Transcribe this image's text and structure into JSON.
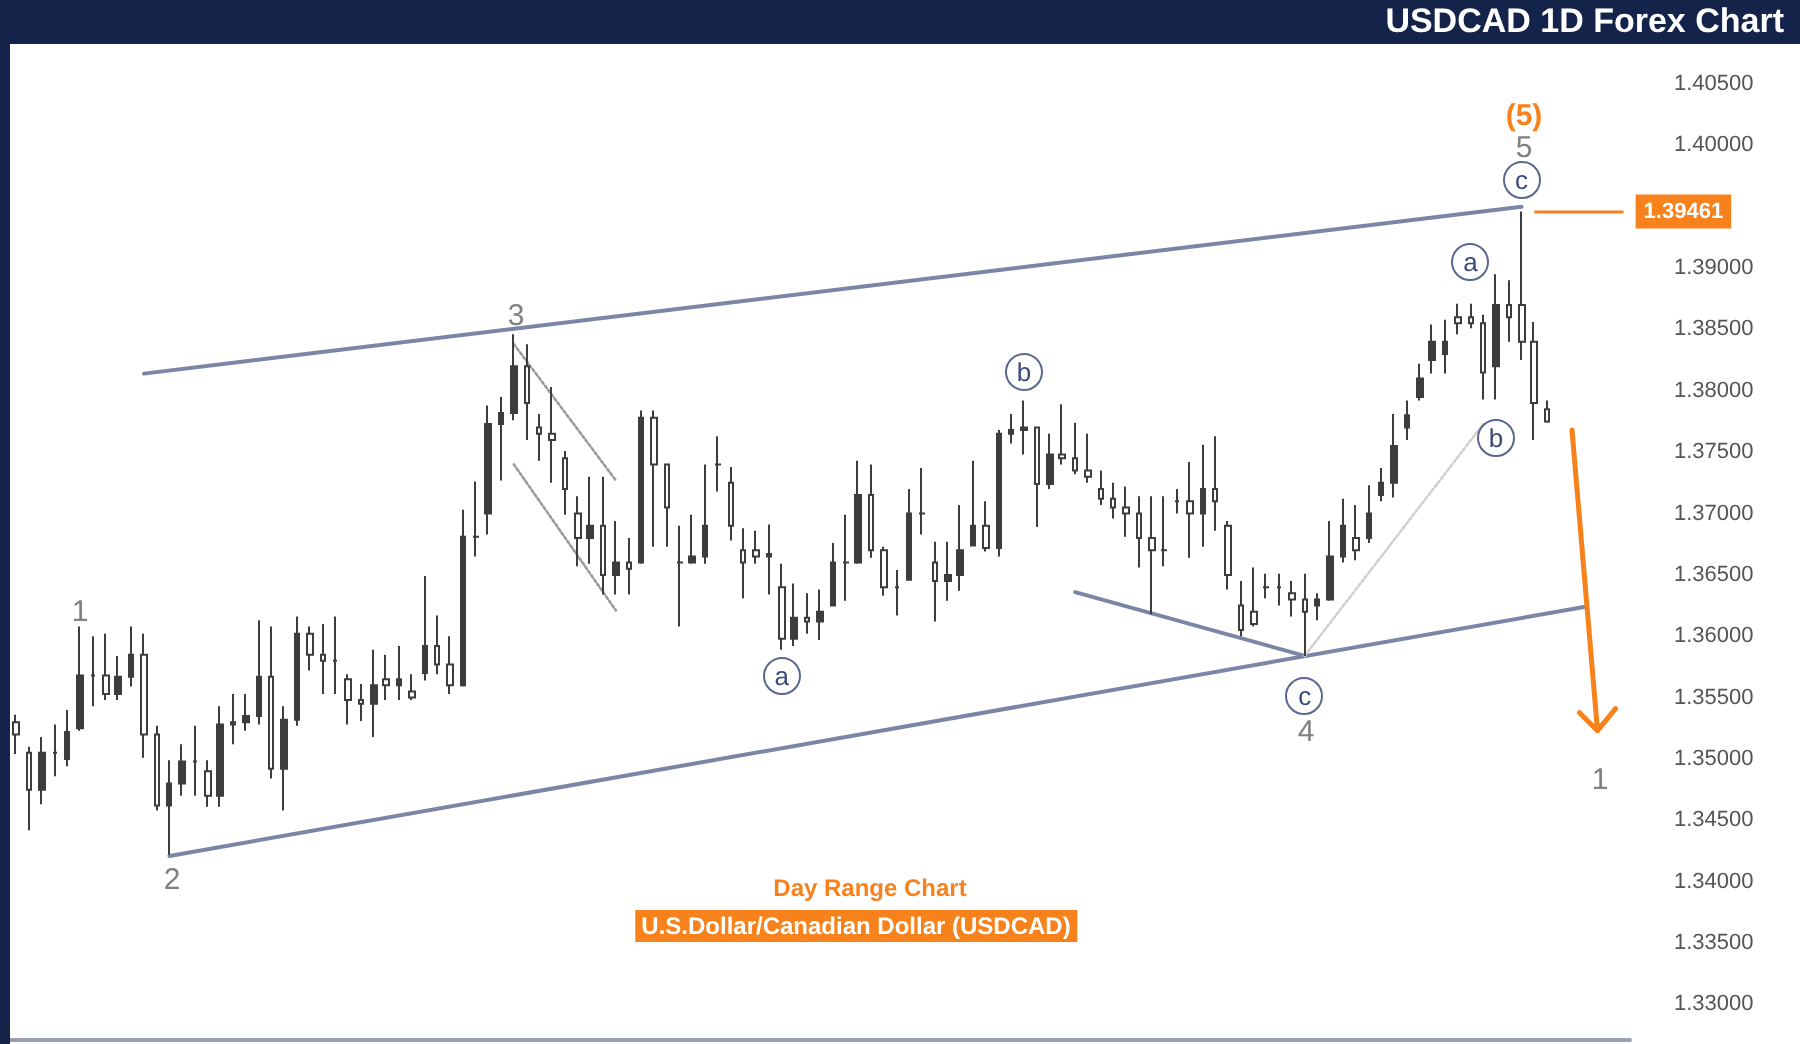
{
  "chart_data": {
    "type": "candlestick",
    "title": "USDCAD 1D Forex Chart",
    "subtitle": "Day Range Chart",
    "color": "#3d3d3d",
    "categories": [
      null,
      null,
      null,
      null,
      null,
      null,
      null,
      null,
      null,
      null,
      null,
      null,
      null,
      null,
      null,
      null,
      null,
      null,
      null,
      null,
      null,
      null,
      null,
      null,
      null,
      null,
      null,
      null,
      null,
      null,
      null,
      null,
      null,
      null,
      null,
      null,
      null,
      null,
      null,
      null,
      null,
      null,
      null,
      null,
      null,
      null,
      null,
      null,
      null,
      null,
      null,
      null,
      null,
      null,
      null,
      null,
      null,
      null,
      null,
      null,
      null,
      null,
      null,
      null,
      null,
      null,
      null,
      null,
      null,
      null,
      null,
      null,
      null,
      null,
      null,
      null,
      null,
      null,
      null,
      null,
      null,
      null,
      null,
      null,
      null,
      null,
      null,
      null,
      null,
      null,
      null,
      null,
      null,
      null,
      null,
      null,
      null,
      null,
      null,
      null,
      null,
      null,
      null,
      null,
      null,
      null,
      null,
      null,
      null,
      null,
      null,
      null,
      null,
      null,
      null,
      null,
      null,
      null,
      null,
      null,
      null,
      null,
      null,
      null,
      null,
      null,
      null
    ],
    "ohlc": [
      [
        1.353,
        1.3536,
        1.3504,
        1.352
      ],
      [
        1.3505,
        1.351,
        1.3442,
        1.3475
      ],
      [
        1.3475,
        1.3518,
        1.3463,
        1.3505
      ],
      [
        1.3505,
        1.3528,
        1.3486,
        1.3505
      ],
      [
        1.35,
        1.354,
        1.3494,
        1.3522
      ],
      [
        1.3525,
        1.3608,
        1.3523,
        1.3568
      ],
      [
        1.3568,
        1.36,
        1.3543,
        1.3568
      ],
      [
        1.3568,
        1.3602,
        1.3548,
        1.3553
      ],
      [
        1.3553,
        1.3584,
        1.3548,
        1.3567
      ],
      [
        1.3567,
        1.3608,
        1.3559,
        1.3585
      ],
      [
        1.3585,
        1.3602,
        1.3501,
        1.352
      ],
      [
        1.352,
        1.3527,
        1.3458,
        1.3462
      ],
      [
        1.3462,
        1.3499,
        1.3422,
        1.348
      ],
      [
        1.348,
        1.3512,
        1.347,
        1.3498
      ],
      [
        1.3498,
        1.3527,
        1.347,
        1.3498
      ],
      [
        1.349,
        1.3499,
        1.3461,
        1.347
      ],
      [
        1.347,
        1.3543,
        1.3461,
        1.3528
      ],
      [
        1.3528,
        1.3553,
        1.3512,
        1.353
      ],
      [
        1.353,
        1.3553,
        1.3523,
        1.3535
      ],
      [
        1.3535,
        1.3613,
        1.3528,
        1.3567
      ],
      [
        1.3567,
        1.3608,
        1.3484,
        1.3492
      ],
      [
        1.3492,
        1.3543,
        1.3458,
        1.3532
      ],
      [
        1.3532,
        1.3616,
        1.3527,
        1.3602
      ],
      [
        1.3602,
        1.3608,
        1.3572,
        1.3585
      ],
      [
        1.3585,
        1.361,
        1.3553,
        1.358
      ],
      [
        1.358,
        1.3616,
        1.3553,
        1.358
      ],
      [
        1.3565,
        1.3569,
        1.3528,
        1.3548
      ],
      [
        1.3548,
        1.3561,
        1.3531,
        1.3545
      ],
      [
        1.3545,
        1.3589,
        1.3518,
        1.356
      ],
      [
        1.3565,
        1.3585,
        1.3548,
        1.356
      ],
      [
        1.356,
        1.3592,
        1.3548,
        1.3565
      ],
      [
        1.3555,
        1.3569,
        1.3548,
        1.355
      ],
      [
        1.357,
        1.3649,
        1.3564,
        1.3592
      ],
      [
        1.3592,
        1.3617,
        1.3569,
        1.3577
      ],
      [
        1.3577,
        1.36,
        1.3553,
        1.356
      ],
      [
        1.356,
        1.3703,
        1.3559,
        1.3681
      ],
      [
        1.3681,
        1.3726,
        1.3665,
        1.3681
      ],
      [
        1.37,
        1.3788,
        1.3683,
        1.3773
      ],
      [
        1.3773,
        1.3795,
        1.3727,
        1.3782
      ],
      [
        1.3782,
        1.3846,
        1.3776,
        1.382
      ],
      [
        1.382,
        1.3838,
        1.376,
        1.379
      ],
      [
        1.377,
        1.3781,
        1.3743,
        1.3765
      ],
      [
        1.3765,
        1.3803,
        1.3725,
        1.376
      ],
      [
        1.3745,
        1.3751,
        1.3699,
        1.372
      ],
      [
        1.37,
        1.3714,
        1.3657,
        1.368
      ],
      [
        1.368,
        1.373,
        1.3659,
        1.369
      ],
      [
        1.369,
        1.373,
        1.3634,
        1.365
      ],
      [
        1.365,
        1.3694,
        1.3634,
        1.366
      ],
      [
        1.366,
        1.368,
        1.3634,
        1.3655
      ],
      [
        1.366,
        1.3784,
        1.3659,
        1.3778
      ],
      [
        1.3778,
        1.3784,
        1.3673,
        1.374
      ],
      [
        1.374,
        1.374,
        1.3673,
        1.3705
      ],
      [
        1.366,
        1.369,
        1.3608,
        1.366
      ],
      [
        1.366,
        1.3699,
        1.3659,
        1.3665
      ],
      [
        1.3665,
        1.374,
        1.3659,
        1.369
      ],
      [
        1.374,
        1.3763,
        1.3718,
        1.374
      ],
      [
        1.3725,
        1.3738,
        1.3678,
        1.369
      ],
      [
        1.367,
        1.3688,
        1.3631,
        1.366
      ],
      [
        1.367,
        1.3686,
        1.3659,
        1.3665
      ],
      [
        1.3665,
        1.3691,
        1.3634,
        1.3667
      ],
      [
        1.364,
        1.3659,
        1.3589,
        1.3598
      ],
      [
        1.3598,
        1.3643,
        1.3592,
        1.3615
      ],
      [
        1.3615,
        1.3635,
        1.3602,
        1.3612
      ],
      [
        1.3612,
        1.3638,
        1.3597,
        1.362
      ],
      [
        1.3625,
        1.3676,
        1.3625,
        1.366
      ],
      [
        1.366,
        1.3699,
        1.3629,
        1.366
      ],
      [
        1.366,
        1.3743,
        1.3659,
        1.3715
      ],
      [
        1.3715,
        1.374,
        1.3664,
        1.367
      ],
      [
        1.367,
        1.3673,
        1.3633,
        1.364
      ],
      [
        1.364,
        1.3654,
        1.3617,
        1.364
      ],
      [
        1.3646,
        1.372,
        1.3646,
        1.37
      ],
      [
        1.37,
        1.3737,
        1.3683,
        1.37
      ],
      [
        1.366,
        1.3677,
        1.3612,
        1.3645
      ],
      [
        1.3645,
        1.3677,
        1.3629,
        1.365
      ],
      [
        1.365,
        1.3707,
        1.3637,
        1.367
      ],
      [
        1.3674,
        1.3743,
        1.3674,
        1.369
      ],
      [
        1.369,
        1.371,
        1.3669,
        1.3672
      ],
      [
        1.3672,
        1.3768,
        1.3665,
        1.3765
      ],
      [
        1.3765,
        1.3781,
        1.3757,
        1.3768
      ],
      [
        1.3768,
        1.3792,
        1.3748,
        1.377
      ],
      [
        1.377,
        1.3771,
        1.3689,
        1.3724
      ],
      [
        1.3724,
        1.3765,
        1.372,
        1.3748
      ],
      [
        1.3748,
        1.3789,
        1.374,
        1.3745
      ],
      [
        1.3745,
        1.3774,
        1.3732,
        1.3735
      ],
      [
        1.3735,
        1.3765,
        1.3725,
        1.373
      ],
      [
        1.372,
        1.3735,
        1.3707,
        1.3712
      ],
      [
        1.3712,
        1.3725,
        1.3696,
        1.3705
      ],
      [
        1.3705,
        1.3722,
        1.3681,
        1.37
      ],
      [
        1.37,
        1.3714,
        1.3656,
        1.368
      ],
      [
        1.368,
        1.3714,
        1.3618,
        1.367
      ],
      [
        1.367,
        1.3714,
        1.3657,
        1.367
      ],
      [
        1.371,
        1.372,
        1.37,
        1.371
      ],
      [
        1.371,
        1.3742,
        1.3664,
        1.37
      ],
      [
        1.37,
        1.3756,
        1.3673,
        1.372
      ],
      [
        1.372,
        1.3763,
        1.3686,
        1.371
      ],
      [
        1.369,
        1.3694,
        1.3638,
        1.365
      ],
      [
        1.3625,
        1.3645,
        1.36,
        1.3605
      ],
      [
        1.362,
        1.3656,
        1.3608,
        1.361
      ],
      [
        1.364,
        1.3651,
        1.3631,
        1.364
      ],
      [
        1.364,
        1.3651,
        1.3625,
        1.364
      ],
      [
        1.3635,
        1.3645,
        1.3616,
        1.363
      ],
      [
        1.363,
        1.3651,
        1.3584,
        1.362
      ],
      [
        1.3625,
        1.3635,
        1.3613,
        1.363
      ],
      [
        1.363,
        1.3694,
        1.3629,
        1.3665
      ],
      [
        1.3665,
        1.3712,
        1.366,
        1.369
      ],
      [
        1.368,
        1.3707,
        1.3662,
        1.367
      ],
      [
        1.368,
        1.3723,
        1.3676,
        1.37
      ],
      [
        1.3715,
        1.3737,
        1.371,
        1.3725
      ],
      [
        1.3725,
        1.3781,
        1.3713,
        1.3755
      ],
      [
        1.377,
        1.3792,
        1.376,
        1.378
      ],
      [
        1.3795,
        1.3822,
        1.3792,
        1.381
      ],
      [
        1.3825,
        1.3854,
        1.3814,
        1.384
      ],
      [
        1.383,
        1.3858,
        1.3814,
        1.384
      ],
      [
        1.386,
        1.3871,
        1.3846,
        1.3855
      ],
      [
        1.386,
        1.3871,
        1.3851,
        1.3855
      ],
      [
        1.3855,
        1.3862,
        1.3793,
        1.3815
      ],
      [
        1.382,
        1.3895,
        1.3793,
        1.387
      ],
      [
        1.387,
        1.389,
        1.384,
        1.386
      ],
      [
        1.387,
        1.39461,
        1.3825,
        1.384
      ],
      [
        1.384,
        1.3856,
        1.376,
        1.379
      ],
      [
        1.3785,
        1.3792,
        1.3774,
        1.3775
      ],
      null,
      null,
      null,
      null,
      null,
      null
    ],
    "series": [
      {
        "type": "line",
        "color": "#7b86a6",
        "line_style": "solid",
        "values": [
          null,
          null,
          null,
          null,
          null,
          null,
          null,
          null,
          null,
          null,
          1.3814,
          null,
          null,
          null,
          null,
          null,
          null,
          null,
          null,
          null,
          null,
          null,
          null,
          null,
          null,
          null,
          null,
          null,
          null,
          null,
          null,
          null,
          null,
          null,
          null,
          null,
          null,
          null,
          null,
          null,
          null,
          null,
          null,
          null,
          null,
          null,
          null,
          null,
          null,
          null,
          null,
          null,
          null,
          null,
          null,
          null,
          null,
          null,
          null,
          null,
          null,
          null,
          null,
          null,
          null,
          null,
          null,
          null,
          null,
          null,
          null,
          null,
          null,
          null,
          null,
          null,
          null,
          null,
          null,
          null,
          null,
          null,
          null,
          null,
          null,
          null,
          null,
          null,
          null,
          null,
          null,
          null,
          null,
          null,
          null,
          null,
          null,
          null,
          null,
          null,
          null,
          null,
          null,
          null,
          null,
          null,
          null,
          null,
          null,
          null,
          null,
          null,
          null,
          null,
          null,
          null,
          null,
          null,
          1.395,
          null,
          null,
          null,
          null,
          null,
          null,
          null,
          null
        ]
      },
      {
        "type": "line",
        "color": "#7b86a6",
        "line_style": "solid",
        "values": [
          null,
          null,
          null,
          null,
          null,
          null,
          null,
          null,
          null,
          null,
          null,
          null,
          1.3421,
          null,
          null,
          null,
          null,
          null,
          null,
          null,
          null,
          null,
          null,
          null,
          null,
          null,
          null,
          null,
          null,
          null,
          null,
          null,
          null,
          null,
          null,
          null,
          null,
          null,
          null,
          null,
          null,
          null,
          null,
          null,
          null,
          null,
          null,
          null,
          null,
          null,
          null,
          null,
          null,
          null,
          null,
          null,
          null,
          null,
          null,
          null,
          null,
          null,
          null,
          null,
          null,
          null,
          null,
          null,
          null,
          null,
          null,
          null,
          null,
          null,
          null,
          null,
          null,
          null,
          null,
          null,
          null,
          null,
          null,
          null,
          null,
          null,
          null,
          null,
          null,
          null,
          null,
          null,
          null,
          null,
          null,
          null,
          null,
          null,
          null,
          null,
          null,
          null,
          null,
          null,
          null,
          null,
          null,
          null,
          null,
          null,
          null,
          null,
          null,
          null,
          null,
          null,
          null,
          null,
          null,
          null,
          null,
          null,
          null,
          1.3624,
          null,
          null,
          null
        ]
      },
      {
        "type": "line",
        "color": "#7b86a6",
        "line_style": "solid",
        "values": [
          null,
          null,
          null,
          null,
          null,
          null,
          null,
          null,
          null,
          null,
          null,
          null,
          null,
          null,
          null,
          null,
          null,
          null,
          null,
          null,
          null,
          null,
          null,
          null,
          null,
          null,
          null,
          null,
          null,
          null,
          null,
          null,
          null,
          null,
          null,
          null,
          null,
          null,
          null,
          null,
          null,
          null,
          null,
          null,
          null,
          null,
          null,
          null,
          null,
          null,
          null,
          null,
          null,
          null,
          null,
          null,
          null,
          null,
          null,
          null,
          null,
          null,
          null,
          null,
          null,
          null,
          null,
          null,
          null,
          null,
          null,
          null,
          null,
          null,
          null,
          null,
          null,
          null,
          null,
          null,
          null,
          null,
          null,
          1.3636,
          null,
          null,
          null,
          null,
          null,
          null,
          null,
          null,
          null,
          null,
          null,
          null,
          null,
          null,
          null,
          null,
          null,
          1.3584,
          null,
          null,
          null,
          null,
          null,
          null,
          null,
          null,
          null,
          null,
          null,
          null,
          null,
          null,
          null,
          null,
          null,
          null,
          null,
          null,
          null,
          null,
          null,
          null,
          null
        ]
      },
      {
        "type": "line",
        "color": "#9a9a9a",
        "line_style": "dotted",
        "values": [
          null,
          null,
          null,
          null,
          null,
          null,
          null,
          null,
          null,
          null,
          null,
          null,
          null,
          null,
          null,
          null,
          null,
          null,
          null,
          null,
          null,
          null,
          null,
          null,
          null,
          null,
          null,
          null,
          null,
          null,
          null,
          null,
          null,
          null,
          null,
          null,
          null,
          null,
          null,
          1.3838,
          null,
          null,
          null,
          null,
          null,
          null,
          null,
          1.3727,
          null,
          null,
          null,
          null,
          null,
          null,
          null,
          null,
          null,
          null,
          null,
          null,
          null,
          null,
          null,
          null,
          null,
          null,
          null,
          null,
          null,
          null,
          null,
          null,
          null,
          null,
          null,
          null,
          null,
          null,
          null,
          null,
          null,
          null,
          null,
          null,
          null,
          null,
          null,
          null,
          null,
          null,
          null,
          null,
          null,
          null,
          null,
          null,
          null,
          null,
          null,
          null,
          null,
          null,
          null,
          null,
          null,
          null,
          null,
          null,
          null,
          null,
          null,
          null,
          null,
          null,
          null,
          null,
          null,
          null,
          null,
          null,
          null,
          null,
          null,
          null,
          null,
          null,
          null
        ]
      },
      {
        "type": "line",
        "color": "#9a9a9a",
        "line_style": "dotted",
        "values": [
          null,
          null,
          null,
          null,
          null,
          null,
          null,
          null,
          null,
          null,
          null,
          null,
          null,
          null,
          null,
          null,
          null,
          null,
          null,
          null,
          null,
          null,
          null,
          null,
          null,
          null,
          null,
          null,
          null,
          null,
          null,
          null,
          null,
          null,
          null,
          null,
          null,
          null,
          null,
          1.374,
          null,
          null,
          null,
          null,
          null,
          null,
          null,
          1.3621,
          null,
          null,
          null,
          null,
          null,
          null,
          null,
          null,
          null,
          null,
          null,
          null,
          null,
          null,
          null,
          null,
          null,
          null,
          null,
          null,
          null,
          null,
          null,
          null,
          null,
          null,
          null,
          null,
          null,
          null,
          null,
          null,
          null,
          null,
          null,
          null,
          null,
          null,
          null,
          null,
          null,
          null,
          null,
          null,
          null,
          null,
          null,
          null,
          null,
          null,
          null,
          null,
          null,
          null,
          null,
          null,
          null,
          null,
          null,
          null,
          null,
          null,
          null,
          null,
          null,
          null,
          null,
          null,
          null,
          null,
          null,
          null,
          null,
          null,
          null,
          null,
          null,
          null,
          null
        ]
      },
      {
        "type": "line",
        "color": "#d0d0d0",
        "line_style": "dotted",
        "values": [
          null,
          null,
          null,
          null,
          null,
          null,
          null,
          null,
          null,
          null,
          null,
          null,
          null,
          null,
          null,
          null,
          null,
          null,
          null,
          null,
          null,
          null,
          null,
          null,
          null,
          null,
          null,
          null,
          null,
          null,
          null,
          null,
          null,
          null,
          null,
          null,
          null,
          null,
          null,
          null,
          null,
          null,
          null,
          null,
          null,
          null,
          null,
          null,
          null,
          null,
          null,
          null,
          null,
          null,
          null,
          null,
          null,
          null,
          null,
          null,
          null,
          null,
          null,
          null,
          null,
          null,
          null,
          null,
          null,
          null,
          null,
          null,
          null,
          null,
          null,
          null,
          null,
          null,
          null,
          null,
          null,
          null,
          null,
          null,
          null,
          null,
          null,
          null,
          null,
          null,
          null,
          null,
          null,
          null,
          null,
          null,
          null,
          null,
          null,
          null,
          null,
          1.3584,
          null,
          null,
          null,
          null,
          null,
          null,
          null,
          null,
          null,
          null,
          null,
          null,
          null,
          1.3773,
          null,
          null,
          null,
          null,
          null,
          null,
          null,
          null,
          null,
          null,
          null
        ]
      }
    ],
    "ylim": [
      1.3271,
      1.405
    ],
    "yticks": [
      {
        "value": 1.33,
        "label": "1.33000"
      },
      {
        "value": 1.335,
        "label": "1.33500"
      },
      {
        "value": 1.34,
        "label": "1.34000"
      },
      {
        "value": 1.345,
        "label": "1.34500"
      },
      {
        "value": 1.35,
        "label": "1.35000"
      },
      {
        "value": 1.355,
        "label": "1.35500"
      },
      {
        "value": 1.36,
        "label": "1.36000"
      },
      {
        "value": 1.365,
        "label": "1.36500"
      },
      {
        "value": 1.37,
        "label": "1.37000"
      },
      {
        "value": 1.375,
        "label": "1.37500"
      },
      {
        "value": 1.38,
        "label": "1.38000"
      },
      {
        "value": 1.385,
        "label": "1.38500"
      },
      {
        "value": 1.39,
        "label": "1.39000"
      },
      {
        "value": 1.4,
        "label": "1.40000"
      },
      {
        "value": 1.405,
        "label": "1.40500"
      }
    ],
    "tick_labels": "y",
    "ref_lines": [
      {
        "axis": "y",
        "value": 1.39461,
        "label": "1.39461",
        "color": "#f7821b"
      }
    ],
    "annotations": [
      "(5)",
      "5",
      "1",
      "2",
      "3",
      "4",
      "1",
      "U.S.Dollar/Canadian Dollar (USDCAD)",
      {
        "text": "c",
        "y": 1.3972
      },
      {
        "text": "a",
        "y": 1.3905
      },
      {
        "text": "b",
        "y": 1.3761
      },
      {
        "text": "a",
        "y": 1.3567
      },
      {
        "text": "b",
        "y": 1.3815
      },
      {
        "text": "c",
        "y": 1.3551
      }
    ]
  }
}
